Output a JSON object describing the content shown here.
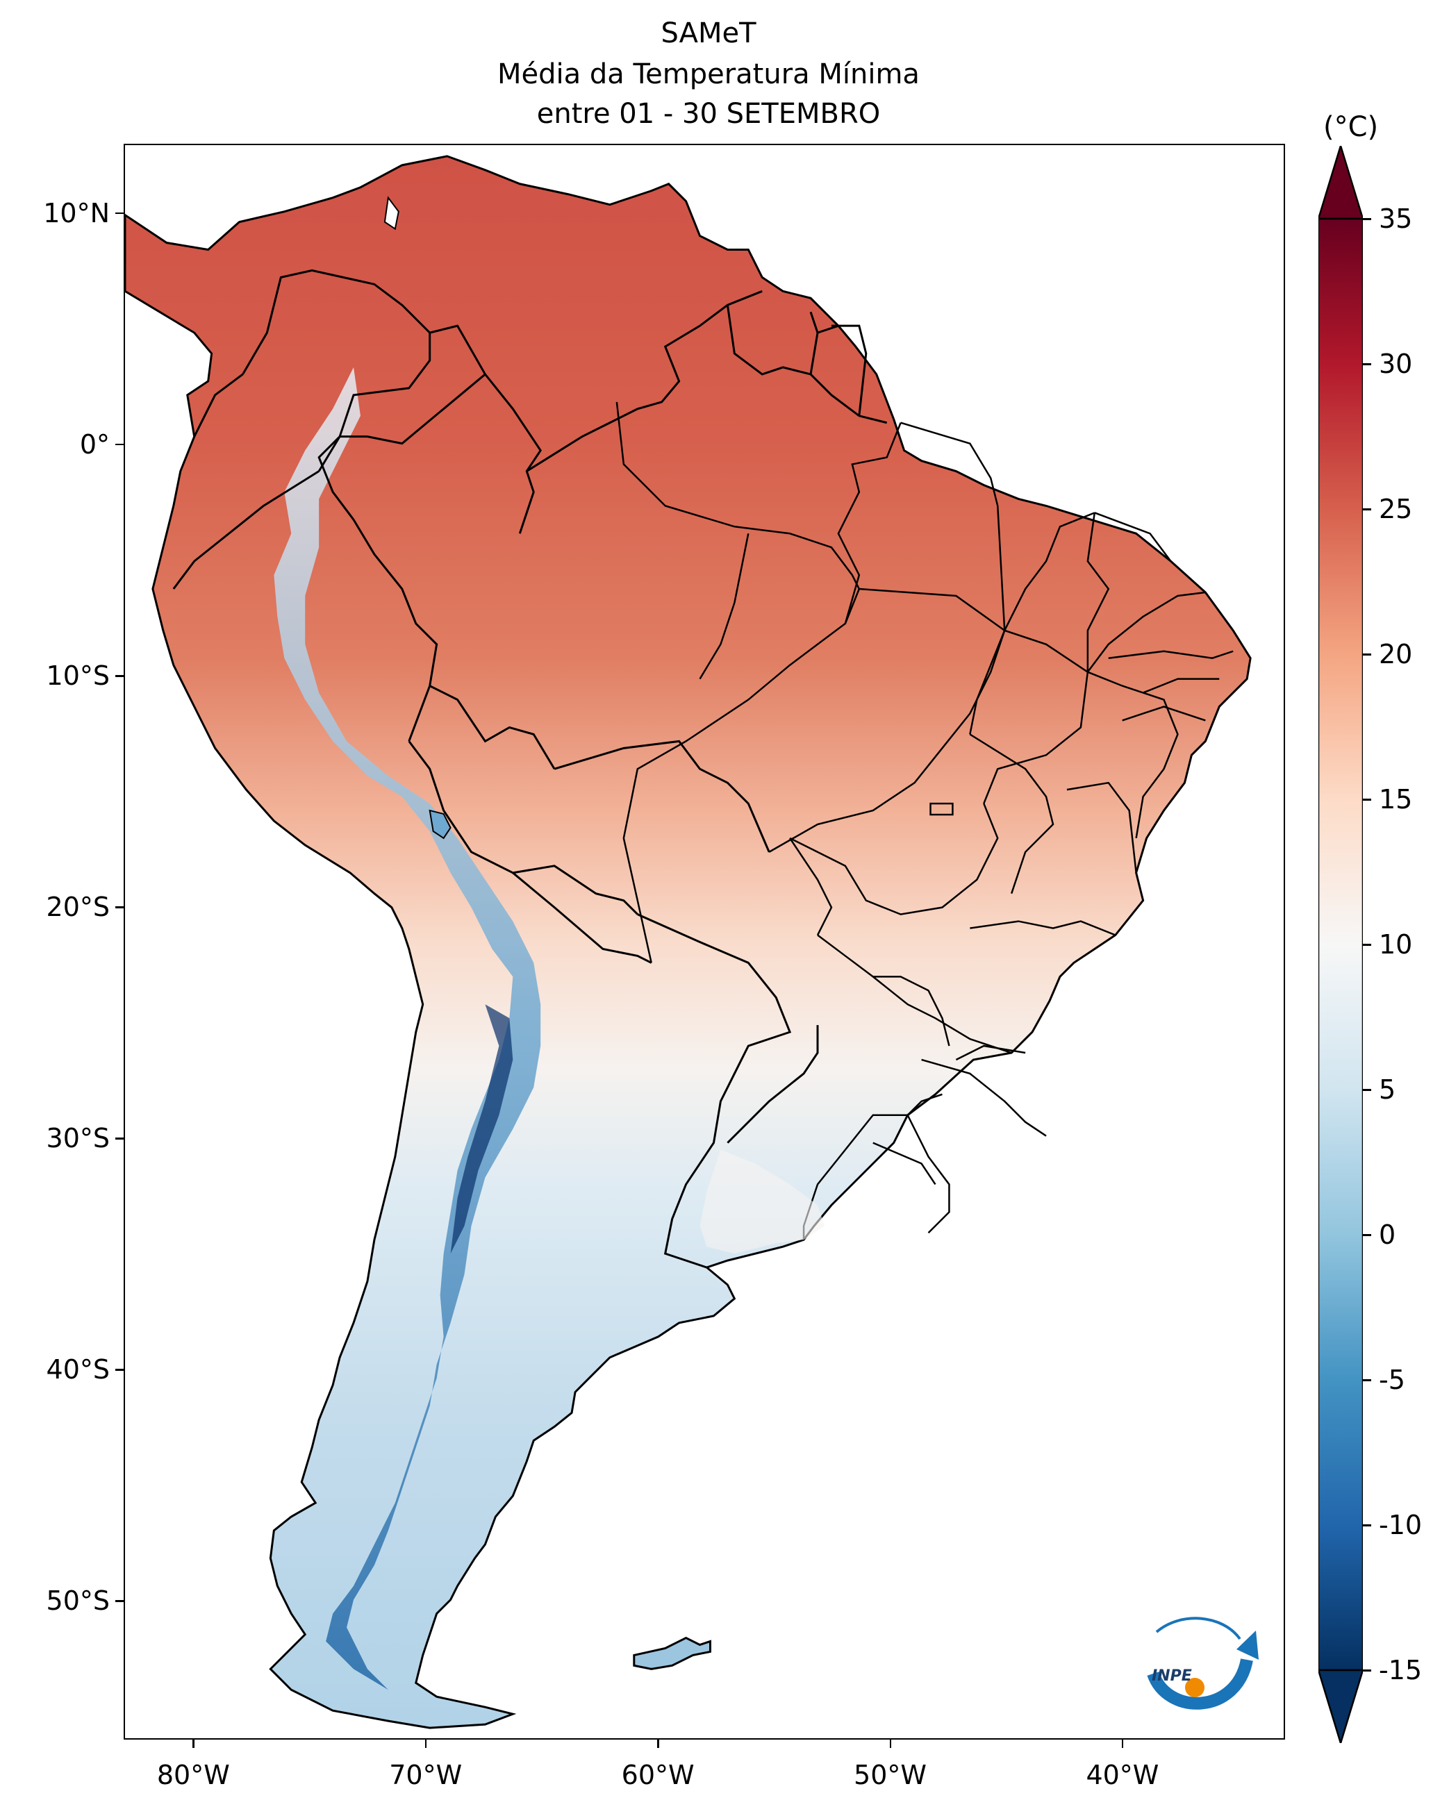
{
  "title": {
    "line1": "SAMeT",
    "line2": "Média da Temperatura Mínima",
    "line3": "entre 01 - 30 SETEMBRO"
  },
  "map": {
    "projection": "PlateCarree",
    "lon_range": [
      -83,
      -33
    ],
    "lat_range": [
      -56,
      13
    ],
    "lat_ticks": [
      {
        "value": 10,
        "label": "10°N"
      },
      {
        "value": 0,
        "label": "0°"
      },
      {
        "value": -10,
        "label": "10°S"
      },
      {
        "value": -20,
        "label": "20°S"
      },
      {
        "value": -30,
        "label": "30°S"
      },
      {
        "value": -40,
        "label": "40°S"
      },
      {
        "value": -50,
        "label": "50°S"
      }
    ],
    "lon_ticks": [
      {
        "value": -80,
        "label": "80°W"
      },
      {
        "value": -70,
        "label": "70°W"
      },
      {
        "value": -60,
        "label": "60°W"
      },
      {
        "value": -50,
        "label": "50°W"
      },
      {
        "value": -40,
        "label": "40°W"
      }
    ]
  },
  "colorbar": {
    "unit": "(°C)",
    "colormap": "RdBu_r",
    "min": -15,
    "max": 35,
    "extend": "both",
    "ticks": [
      35,
      30,
      25,
      20,
      15,
      10,
      5,
      0,
      -5,
      -10,
      -15
    ],
    "tick_labels": [
      "35",
      "30",
      "25",
      "20",
      "15",
      "10",
      "5",
      "0",
      "-5",
      "-10",
      "-15"
    ]
  },
  "logo": {
    "text": "INPE",
    "colors": [
      "#1a74b8",
      "#f08a00"
    ]
  }
}
